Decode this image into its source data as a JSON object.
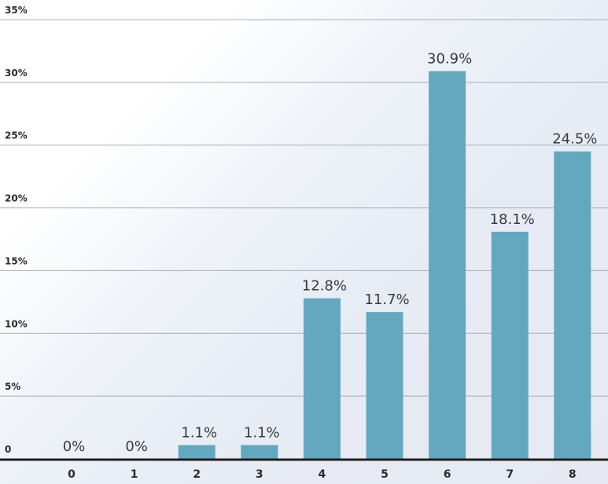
{
  "chart_data": {
    "type": "bar",
    "categories": [
      "0",
      "1",
      "2",
      "3",
      "4",
      "5",
      "6",
      "7",
      "8"
    ],
    "values": [
      0,
      0,
      1.1,
      1.1,
      12.8,
      11.7,
      30.9,
      18.1,
      24.5
    ],
    "data_labels": [
      "0%",
      "0%",
      "1.1%",
      "1.1%",
      "12.8%",
      "11.7%",
      "30.9%",
      "18.1%",
      "24.5%"
    ],
    "y_ticks": [
      0,
      5,
      10,
      15,
      20,
      25,
      30,
      35
    ],
    "y_tick_labels": [
      "0",
      "5%",
      "10%",
      "15%",
      "20%",
      "25%",
      "30%",
      "35%"
    ],
    "ylim": [
      0,
      35
    ],
    "title": "",
    "xlabel": "",
    "ylabel": "",
    "grid": true,
    "legend": "none",
    "colors": {
      "bar": "#64a8bf",
      "gridline": "#a9adb6",
      "axis": "#1f1f1f"
    }
  }
}
